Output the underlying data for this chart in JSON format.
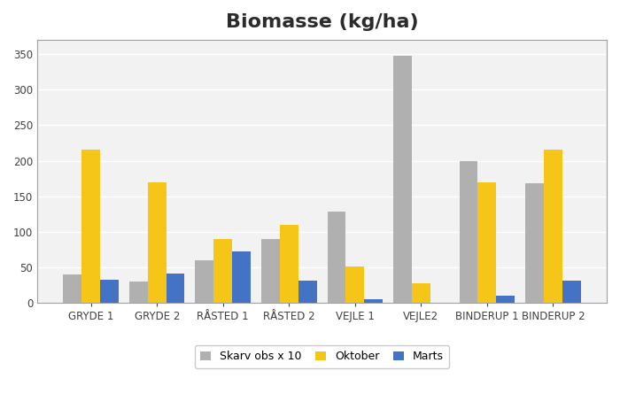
{
  "title": "Biomasse (kg/ha)",
  "categories": [
    "GRYDE 1",
    "GRYDE 2",
    "RÅSTED 1",
    "RÅSTED 2",
    "VEJLE 1",
    "VEJLE2",
    "BINDERUP 1",
    "BINDERUP 2"
  ],
  "series": {
    "Skarv obs x 10": [
      40,
      30,
      60,
      90,
      128,
      348,
      200,
      168
    ],
    "Oktober": [
      215,
      170,
      90,
      110,
      52,
      28,
      170,
      216
    ],
    "Marts": [
      33,
      41,
      73,
      32,
      6,
      0,
      11,
      31
    ]
  },
  "colors": {
    "Skarv obs x 10": "#b0b0b0",
    "Oktober": "#f5c518",
    "Marts": "#4472c4"
  },
  "ylim": [
    0,
    370
  ],
  "yticks": [
    0,
    50,
    100,
    150,
    200,
    250,
    300,
    350
  ],
  "legend_labels": [
    "Skarv obs x 10",
    "Oktober",
    "Marts"
  ],
  "bar_width": 0.28,
  "background_color": "#ffffff",
  "plot_bg_color": "#f2f2f2",
  "grid_color": "#ffffff",
  "title_fontsize": 16,
  "tick_fontsize": 8.5,
  "legend_fontsize": 9
}
